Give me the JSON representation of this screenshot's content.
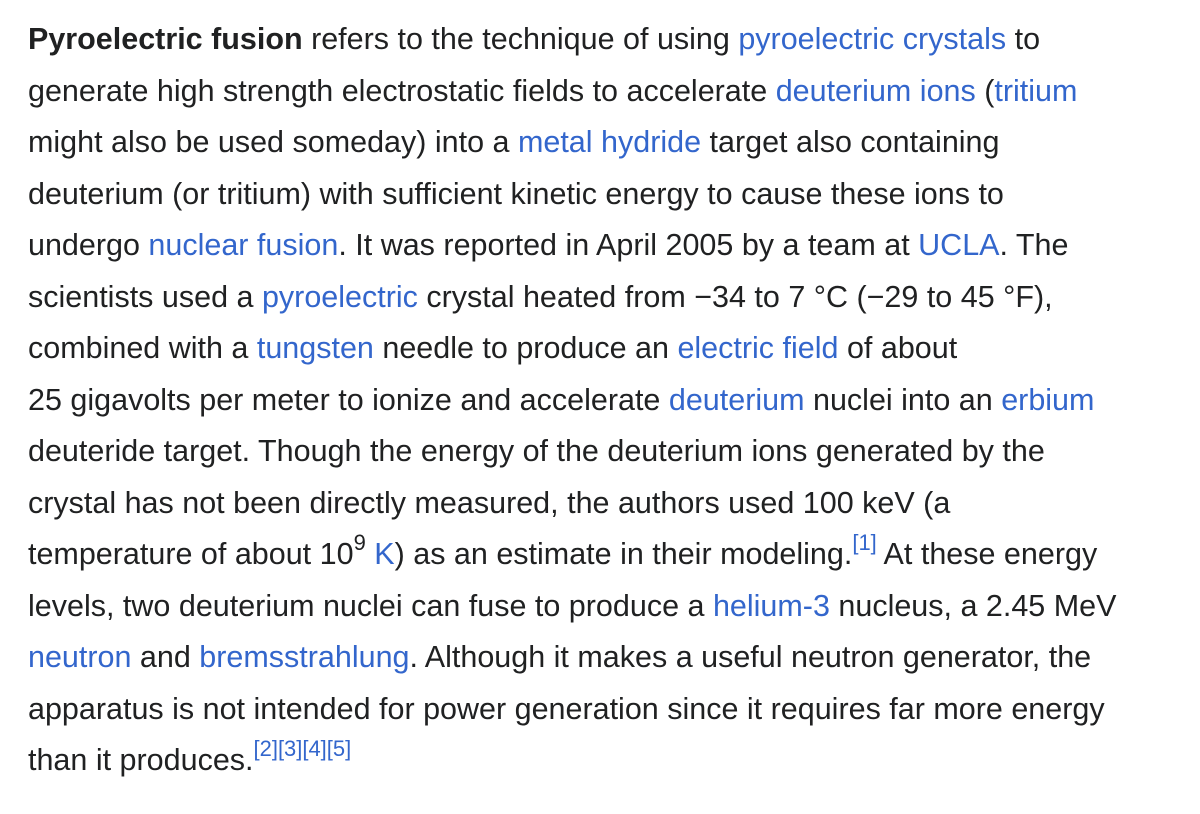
{
  "article": {
    "lines": [
      [
        {
          "text": "Pyroelectric fusion",
          "bold": true
        },
        {
          "text": " refers to the technique of using "
        },
        {
          "text": "pyroelectric crystals",
          "link": true
        },
        {
          "text": " to"
        }
      ],
      [
        {
          "text": "generate high strength electrostatic fields to accelerate "
        },
        {
          "text": "deuterium ions",
          "link": true
        },
        {
          "text": " ("
        },
        {
          "text": "tritium",
          "link": true
        }
      ],
      [
        {
          "text": "might also be used someday) into a "
        },
        {
          "text": "metal hydride",
          "link": true
        },
        {
          "text": " target also containing"
        }
      ],
      [
        {
          "text": "deuterium (or tritium) with sufficient kinetic energy to cause these ions to"
        }
      ],
      [
        {
          "text": "undergo "
        },
        {
          "text": "nuclear fusion",
          "link": true
        },
        {
          "text": ". It was reported in April 2005 by a team at "
        },
        {
          "text": "UCLA",
          "link": true
        },
        {
          "text": ". The"
        }
      ],
      [
        {
          "text": "scientists used a "
        },
        {
          "text": "pyroelectric",
          "link": true
        },
        {
          "text": " crystal heated from −34 to 7 °C (−29 to 45 °F),"
        }
      ],
      [
        {
          "text": "combined with a "
        },
        {
          "text": "tungsten",
          "link": true
        },
        {
          "text": " needle to produce an "
        },
        {
          "text": "electric field",
          "link": true
        },
        {
          "text": " of about"
        }
      ],
      [
        {
          "text": "25 gigavolts per meter to ionize and accelerate "
        },
        {
          "text": "deuterium",
          "link": true
        },
        {
          "text": " nuclei into an "
        },
        {
          "text": "erbium",
          "link": true
        }
      ],
      [
        {
          "text": "deuteride target. Though the energy of the deuterium ions generated by the"
        }
      ],
      [
        {
          "text": "crystal has not been directly measured, the authors used 100 keV (a"
        }
      ],
      [
        {
          "text": "temperature of about 10"
        },
        {
          "text": "9",
          "sup": true
        },
        {
          "text": " "
        },
        {
          "text": "K",
          "link": true
        },
        {
          "text": ") as an estimate in their modeling."
        },
        {
          "text": "[1]",
          "ref": true
        },
        {
          "text": " At these energy"
        }
      ],
      [
        {
          "text": "levels, two deuterium nuclei can fuse to produce a "
        },
        {
          "text": "helium-3",
          "link": true
        },
        {
          "text": " nucleus, a 2.45 MeV"
        }
      ],
      [
        {
          "text": "neutron",
          "link": true
        },
        {
          "text": " and "
        },
        {
          "text": "bremsstrahlung",
          "link": true
        },
        {
          "text": ". Although it makes a useful neutron generator, the"
        }
      ],
      [
        {
          "text": "apparatus is not intended for power generation since it requires far more energy"
        }
      ],
      [
        {
          "text": "than it produces."
        },
        {
          "text": "[2]",
          "ref": true
        },
        {
          "text": "[3]",
          "ref": true
        },
        {
          "text": "[4]",
          "ref": true
        },
        {
          "text": "[5]",
          "ref": true
        }
      ]
    ]
  },
  "colors": {
    "text": "#202122",
    "link": "#3366cc",
    "background": "#ffffff"
  }
}
